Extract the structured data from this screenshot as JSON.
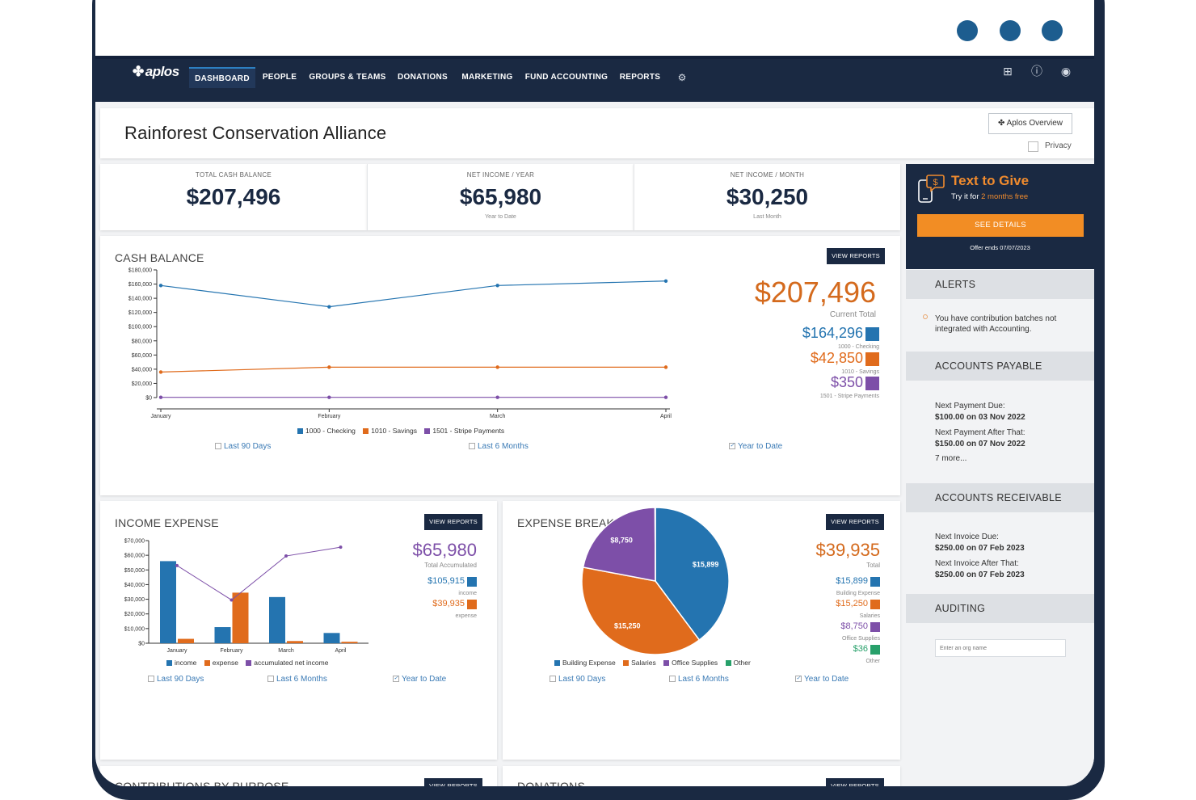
{
  "window": {
    "dots": [
      "dot",
      "dot",
      "dot"
    ]
  },
  "nav": {
    "logo": "aplos",
    "items": [
      "DASHBOARD",
      "PEOPLE",
      "GROUPS & TEAMS",
      "DONATIONS",
      "MARKETING",
      "FUND ACCOUNTING",
      "REPORTS"
    ],
    "active": "DASHBOARD",
    "icons": [
      "gear-icon",
      "add-square-icon",
      "help-icon",
      "user-icon"
    ]
  },
  "header": {
    "title": "Rainforest Conservation Alliance",
    "overview_label": "Aplos Overview",
    "privacy_label": "Privacy"
  },
  "stats": [
    {
      "label": "TOTAL CASH BALANCE",
      "value": "$207,496",
      "sub": ""
    },
    {
      "label": "NET INCOME / YEAR",
      "value": "$65,980",
      "sub": "Year to Date"
    },
    {
      "label": "NET INCOME / MONTH",
      "value": "$30,250",
      "sub": "Last Month"
    }
  ],
  "cash_balance": {
    "title": "CASH BALANCE",
    "view_reports": "VIEW REPORTS",
    "total": "$207,496",
    "total_label": "Current Total",
    "accounts": [
      {
        "value": "$164,296",
        "label": "1000 - Checking",
        "color": "#2474b0"
      },
      {
        "value": "$42,850",
        "label": "1010 - Savings",
        "color": "#e06b1c"
      },
      {
        "value": "$350",
        "label": "1501 - Stripe Payments",
        "color": "#7d4fa8"
      }
    ],
    "filters": [
      {
        "label": "Last 90 Days",
        "checked": false
      },
      {
        "label": "Last 6 Months",
        "checked": false
      },
      {
        "label": "Year to Date",
        "checked": true
      }
    ]
  },
  "income_expense": {
    "title": "INCOME EXPENSE",
    "view_reports": "VIEW REPORTS",
    "total": "$65,980",
    "total_label": "Total Accumulated",
    "lines": [
      {
        "value": "$105,915",
        "label": "income",
        "color": "#2474b0"
      },
      {
        "value": "$39,935",
        "label": "expense",
        "color": "#e06b1c"
      }
    ],
    "filters": [
      {
        "label": "Last 90 Days",
        "checked": false
      },
      {
        "label": "Last 6 Months",
        "checked": false
      },
      {
        "label": "Year to Date",
        "checked": true
      }
    ]
  },
  "expense_breakout": {
    "title": "EXPENSE BREAKOUT",
    "view_reports": "VIEW REPORTS",
    "total": "$39,935",
    "total_label": "Total",
    "lines": [
      {
        "value": "$15,899",
        "label": "Building Expense",
        "color": "#2474b0"
      },
      {
        "value": "$15,250",
        "label": "Salaries",
        "color": "#e06b1c"
      },
      {
        "value": "$8,750",
        "label": "Office Supplies",
        "color": "#7d4fa8"
      },
      {
        "value": "$36",
        "label": "Other",
        "color": "#27a06a"
      }
    ],
    "filters": [
      {
        "label": "Last 90 Days",
        "checked": false
      },
      {
        "label": "Last 6 Months",
        "checked": false
      },
      {
        "label": "Year to Date",
        "checked": true
      }
    ]
  },
  "bottom": {
    "left_title": "CONTRIBUTIONS BY PURPOSE",
    "right_title": "DONATIONS",
    "view_reports": "VIEW REPORTS"
  },
  "sidebar": {
    "promo": {
      "title": "Text to Give",
      "sub_prefix": "Try it for ",
      "sub_highlight": "2 months free",
      "button": "SEE DETAILS",
      "offer": "Offer ends 07/07/2023"
    },
    "alerts": {
      "title": "ALERTS",
      "text": "You have contribution batches not integrated with Accounting."
    },
    "payable": {
      "title": "ACCOUNTS PAYABLE",
      "next_label": "Next Payment Due:",
      "next_value": "$100.00 on 03 Nov 2022",
      "after_label": "Next Payment After That:",
      "after_value": "$150.00 on 07 Nov 2022",
      "more": "7 more..."
    },
    "receivable": {
      "title": "ACCOUNTS RECEIVABLE",
      "next_label": "Next Invoice Due:",
      "next_value": "$250.00 on 07 Feb 2023",
      "after_label": "Next Invoice After That:",
      "after_value": "$250.00 on 07 Feb 2023"
    },
    "auditing": {
      "title": "AUDITING",
      "placeholder": "Enter an org name"
    }
  },
  "chart_data": [
    {
      "type": "line",
      "title": "CASH BALANCE",
      "categories": [
        "January",
        "February",
        "March",
        "April"
      ],
      "ylim": [
        0,
        180000
      ],
      "yticks": [
        "$0",
        "$20,000",
        "$40,000",
        "$60,000",
        "$80,000",
        "$100,000",
        "$120,000",
        "$140,000",
        "$160,000",
        "$180,000"
      ],
      "series": [
        {
          "name": "1000 - Checking",
          "color": "#2474b0",
          "values": [
            158000,
            128000,
            158000,
            164296
          ]
        },
        {
          "name": "1010 - Savings",
          "color": "#e06b1c",
          "values": [
            36000,
            42850,
            42850,
            42850
          ]
        },
        {
          "name": "1501 - Stripe Payments",
          "color": "#7d4fa8",
          "values": [
            350,
            350,
            350,
            350
          ]
        }
      ],
      "legend": "bottom"
    },
    {
      "type": "bar",
      "title": "INCOME EXPENSE",
      "categories": [
        "January",
        "February",
        "March",
        "April"
      ],
      "ylim": [
        0,
        70000
      ],
      "yticks": [
        "$0",
        "$10,000",
        "$20,000",
        "$30,000",
        "$40,000",
        "$50,000",
        "$60,000",
        "$70,000"
      ],
      "series": [
        {
          "name": "income",
          "color": "#2474b0",
          "values": [
            56000,
            11000,
            31500,
            7000
          ]
        },
        {
          "name": "expense",
          "color": "#e06b1c",
          "values": [
            3000,
            34500,
            1500,
            1000
          ]
        },
        {
          "name": "accumulated net income",
          "color": "#7d4fa8",
          "values": [
            53000,
            29500,
            59500,
            65500
          ],
          "kind": "line"
        }
      ],
      "legend": "bottom"
    },
    {
      "type": "pie",
      "title": "EXPENSE BREAKOUT",
      "series": [
        {
          "name": "Building Expense",
          "value": 15899,
          "label": "$15,899",
          "color": "#2474b0"
        },
        {
          "name": "Salaries",
          "value": 15250,
          "label": "$15,250",
          "color": "#e06b1c"
        },
        {
          "name": "Office Supplies",
          "value": 8750,
          "label": "$8,750",
          "color": "#7d4fa8"
        },
        {
          "name": "Other",
          "value": 36,
          "label": "",
          "color": "#27a06a"
        }
      ],
      "legend": "bottom"
    }
  ]
}
